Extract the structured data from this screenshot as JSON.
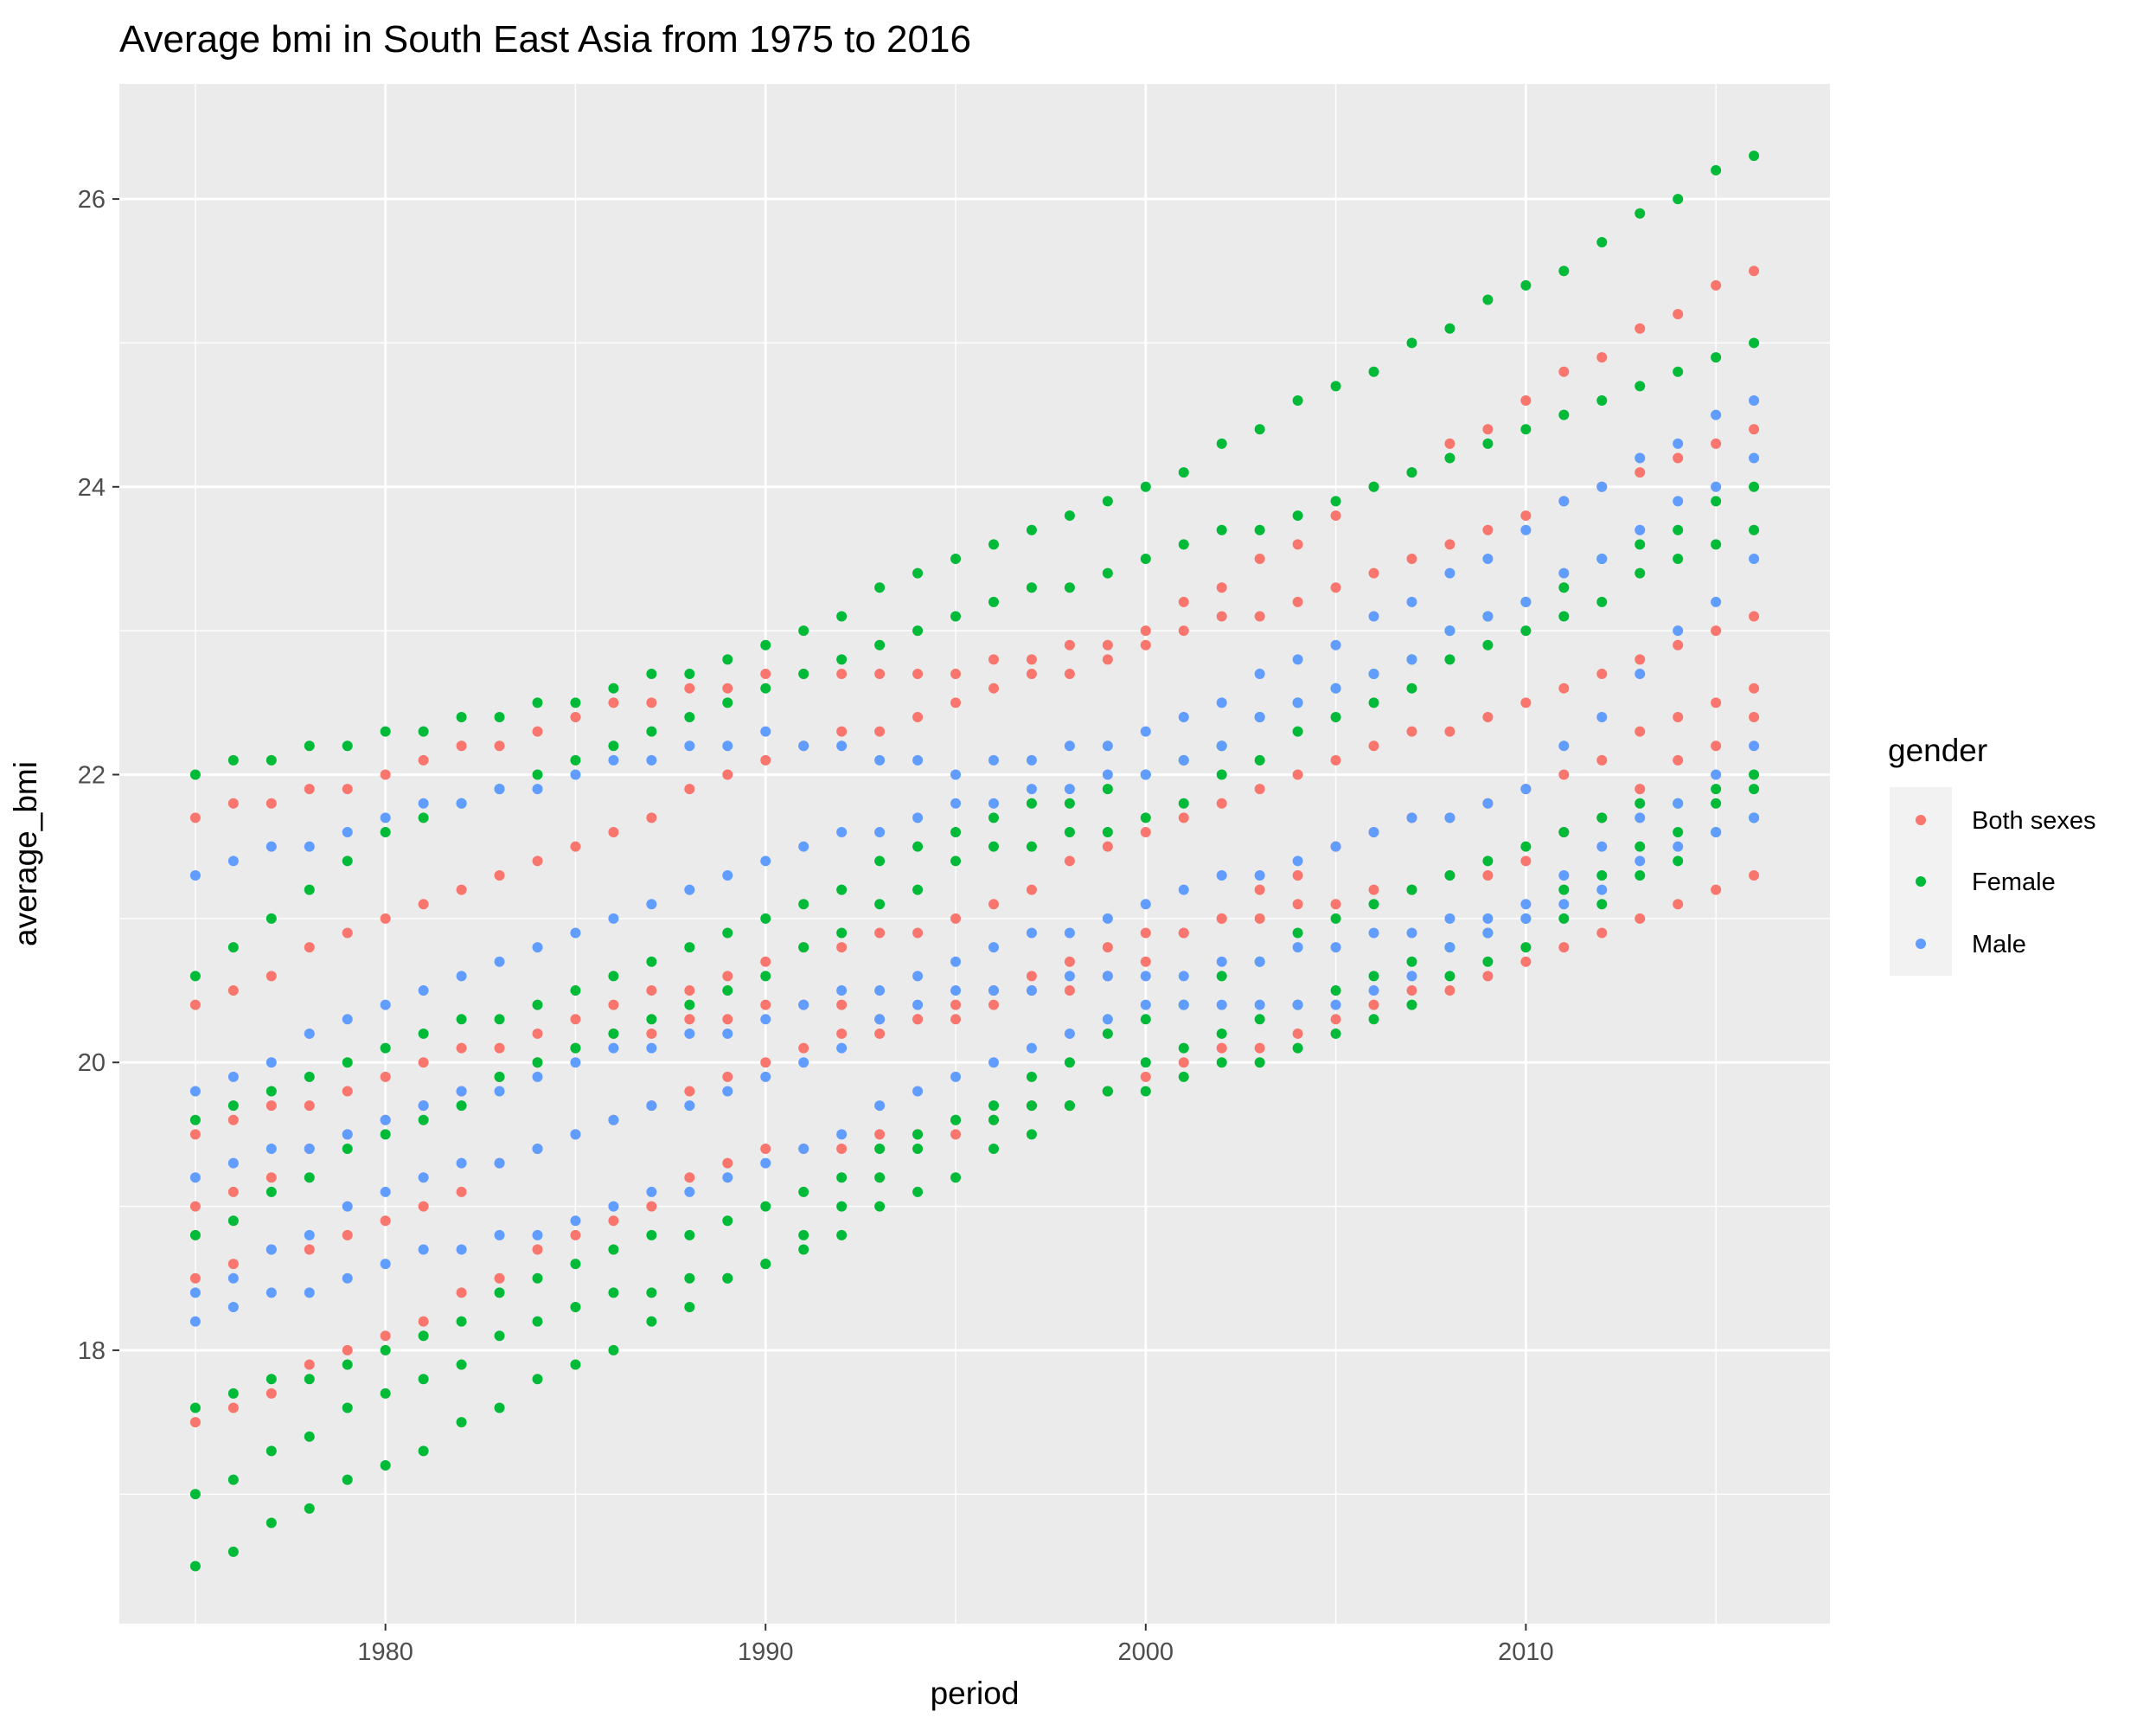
{
  "chart_data": {
    "type": "scatter",
    "title": "Average bmi in South East Asia from 1975 to 2016",
    "xlabel": "period",
    "ylabel": "average_bmi",
    "xlim": [
      1973,
      2018
    ],
    "ylim": [
      16.1,
      26.8
    ],
    "x_ticks": [
      1980,
      1990,
      2000,
      2010
    ],
    "y_ticks": [
      18,
      20,
      22,
      24,
      26
    ],
    "grid": true,
    "legend": {
      "title": "gender",
      "placement": "right",
      "entries": [
        {
          "label": "Both sexes",
          "color": "#F8766D"
        },
        {
          "label": "Female",
          "color": "#00BA38"
        },
        {
          "label": "Male",
          "color": "#619CFF"
        }
      ]
    },
    "series_lines": [
      {
        "name": "Both sexes",
        "color": "#F8766D",
        "lines": [
          [
            [
              1975,
              21.7
            ],
            [
              1980,
              22.0
            ],
            [
              1985,
              22.4
            ],
            [
              1990,
              22.7
            ],
            [
              1995,
              22.7
            ],
            [
              2000,
              23.0
            ],
            [
              2005,
              23.8
            ],
            [
              2010,
              24.6
            ],
            [
              2016,
              25.5
            ]
          ],
          [
            [
              1975,
              20.4
            ],
            [
              1980,
              21.0
            ],
            [
              1985,
              21.5
            ],
            [
              1990,
              22.1
            ],
            [
              1995,
              22.5
            ],
            [
              2000,
              22.9
            ],
            [
              2005,
              23.3
            ],
            [
              2010,
              23.8
            ],
            [
              2016,
              24.4
            ]
          ],
          [
            [
              1975,
              19.5
            ],
            [
              1980,
              19.9
            ],
            [
              1985,
              20.3
            ],
            [
              1990,
              20.7
            ],
            [
              1995,
              21.0
            ],
            [
              2000,
              21.6
            ],
            [
              2005,
              22.1
            ],
            [
              2010,
              22.5
            ],
            [
              2016,
              23.1
            ]
          ],
          [
            [
              1975,
              19.0
            ],
            [
              1980,
              19.6
            ],
            [
              1985,
              20.1
            ],
            [
              1990,
              20.4
            ],
            [
              1995,
              20.3
            ],
            [
              2000,
              20.7
            ],
            [
              2005,
              21.5
            ],
            [
              2010,
              21.9
            ],
            [
              2016,
              22.6
            ]
          ],
          [
            [
              1975,
              18.5
            ],
            [
              1980,
              18.9
            ],
            [
              1985,
              19.5
            ],
            [
              1990,
              20.0
            ],
            [
              1995,
              20.4
            ],
            [
              2000,
              20.9
            ],
            [
              2005,
              21.1
            ],
            [
              2010,
              21.4
            ],
            [
              2016,
              22.4
            ]
          ],
          [
            [
              1975,
              17.5
            ],
            [
              1980,
              18.1
            ],
            [
              1985,
              18.8
            ],
            [
              1990,
              19.4
            ],
            [
              1995,
              19.5
            ],
            [
              2000,
              19.9
            ],
            [
              2005,
              20.3
            ],
            [
              2010,
              20.7
            ],
            [
              2016,
              21.3
            ]
          ]
        ]
      },
      {
        "name": "Female",
        "color": "#00BA38",
        "lines": [
          [
            [
              1975,
              22.0
            ],
            [
              1980,
              22.3
            ],
            [
              1985,
              22.5
            ],
            [
              1990,
              22.9
            ],
            [
              1995,
              23.5
            ],
            [
              2000,
              24.0
            ],
            [
              2005,
              24.7
            ],
            [
              2010,
              25.4
            ],
            [
              2016,
              26.3
            ]
          ],
          [
            [
              1975,
              20.6
            ],
            [
              1980,
              21.6
            ],
            [
              1985,
              22.1
            ],
            [
              1990,
              22.6
            ],
            [
              1995,
              23.1
            ],
            [
              2000,
              23.5
            ],
            [
              2005,
              23.9
            ],
            [
              2010,
              24.4
            ],
            [
              2016,
              25.0
            ]
          ],
          [
            [
              1975,
              19.6
            ],
            [
              1980,
              20.1
            ],
            [
              1985,
              20.5
            ],
            [
              1990,
              21.0
            ],
            [
              1995,
              21.6
            ],
            [
              2000,
              22.0
            ],
            [
              2005,
              22.6
            ],
            [
              2010,
              23.2
            ],
            [
              2016,
              24.0
            ]
          ],
          [
            [
              1975,
              18.8
            ],
            [
              1980,
              19.5
            ],
            [
              1985,
              20.1
            ],
            [
              1990,
              20.6
            ],
            [
              1995,
              21.4
            ],
            [
              2000,
              21.7
            ],
            [
              2005,
              22.4
            ],
            [
              2010,
              23.0
            ],
            [
              2016,
              23.7
            ]
          ],
          [
            [
              1975,
              17.6
            ],
            [
              1980,
              18.0
            ],
            [
              1985,
              18.6
            ],
            [
              1990,
              19.0
            ],
            [
              1995,
              19.6
            ],
            [
              2000,
              20.3
            ],
            [
              2005,
              21.0
            ],
            [
              2010,
              21.5
            ],
            [
              2016,
              22.0
            ]
          ],
          [
            [
              1975,
              17.0
            ],
            [
              1980,
              17.7
            ],
            [
              1985,
              18.3
            ],
            [
              1990,
              18.6
            ],
            [
              1995,
              19.2
            ],
            [
              2000,
              20.0
            ],
            [
              2005,
              20.5
            ],
            [
              2010,
              21.0
            ],
            [
              2016,
              21.9
            ]
          ],
          [
            [
              1975,
              16.5
            ],
            [
              1980,
              17.2
            ],
            [
              1985,
              17.9
            ],
            [
              1990,
              18.6
            ],
            [
              1995,
              19.6
            ],
            [
              2000,
              19.8
            ],
            [
              2005,
              20.2
            ],
            [
              2010,
              20.8
            ],
            [
              2016,
              21.7
            ]
          ]
        ]
      },
      {
        "name": "Male",
        "color": "#619CFF",
        "lines": [
          [
            [
              1975,
              21.3
            ],
            [
              1980,
              21.7
            ],
            [
              1985,
              22.0
            ],
            [
              1990,
              22.3
            ],
            [
              1995,
              22.0
            ],
            [
              2000,
              22.3
            ],
            [
              2005,
              22.9
            ],
            [
              2010,
              23.7
            ],
            [
              2016,
              24.6
            ]
          ],
          [
            [
              1975,
              19.8
            ],
            [
              1980,
              20.4
            ],
            [
              1985,
              20.9
            ],
            [
              1990,
              21.4
            ],
            [
              1995,
              21.8
            ],
            [
              2000,
              22.0
            ],
            [
              2005,
              22.6
            ],
            [
              2010,
              23.2
            ],
            [
              2016,
              24.2
            ]
          ],
          [
            [
              1975,
              19.2
            ],
            [
              1980,
              19.6
            ],
            [
              1985,
              20.0
            ],
            [
              1990,
              20.3
            ],
            [
              1995,
              20.7
            ],
            [
              2000,
              21.1
            ],
            [
              2005,
              21.5
            ],
            [
              2010,
              21.9
            ],
            [
              2016,
              23.5
            ]
          ],
          [
            [
              1975,
              18.4
            ],
            [
              1980,
              19.1
            ],
            [
              1985,
              19.5
            ],
            [
              1990,
              19.9
            ],
            [
              1995,
              20.5
            ],
            [
              2000,
              20.6
            ],
            [
              2005,
              20.8
            ],
            [
              2010,
              21.1
            ],
            [
              2016,
              22.2
            ]
          ],
          [
            [
              1975,
              18.2
            ],
            [
              1980,
              18.6
            ],
            [
              1985,
              18.9
            ],
            [
              1990,
              19.3
            ],
            [
              1995,
              19.9
            ],
            [
              2000,
              20.4
            ],
            [
              2005,
              20.4
            ],
            [
              2010,
              21.0
            ],
            [
              2016,
              21.7
            ]
          ]
        ]
      }
    ]
  }
}
